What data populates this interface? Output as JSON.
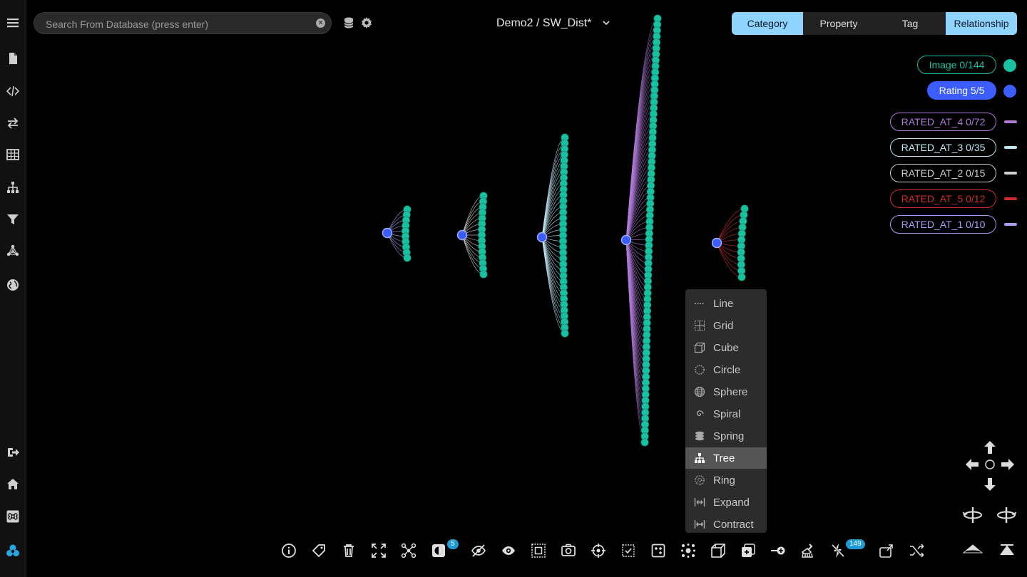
{
  "search": {
    "placeholder": "Search From Database (press enter)"
  },
  "title": "Demo2 / SW_Dist*",
  "tabs": [
    {
      "label": "Category",
      "active": true
    },
    {
      "label": "Property",
      "active": false
    },
    {
      "label": "Tag",
      "active": false
    },
    {
      "label": "Relationship",
      "active": true
    }
  ],
  "legend": {
    "nodes": [
      {
        "label": "Image 0/144",
        "color": "#18c1a0",
        "filled": false
      },
      {
        "label": "Rating 5/5",
        "color": "#3b5cff",
        "filled": true
      }
    ],
    "edges": [
      {
        "label": "RATED_AT_4 0/72",
        "color": "#b07ad9"
      },
      {
        "label": "RATED_AT_3 0/35",
        "color": "#bfe7f2"
      },
      {
        "label": "RATED_AT_2 0/15",
        "color": "#d0d0d0"
      },
      {
        "label": "RATED_AT_5 0/12",
        "color": "#d22b2b"
      },
      {
        "label": "RATED_AT_1 0/10",
        "color": "#a99cf5"
      }
    ]
  },
  "graph": {
    "image_color": "#18c1a0",
    "rating_color": "#3b5cff",
    "clusters": [
      {
        "edge": "RATED_AT_1",
        "count": 10,
        "color": "#a99cf5"
      },
      {
        "edge": "RATED_AT_2",
        "count": 15,
        "color": "#d0d0d0"
      },
      {
        "edge": "RATED_AT_3",
        "count": 35,
        "color": "#bfe7f2"
      },
      {
        "edge": "RATED_AT_4",
        "count": 72,
        "color": "#b07ad9"
      },
      {
        "edge": "RATED_AT_5",
        "count": 12,
        "color": "#d22b2b"
      }
    ]
  },
  "layout_menu": {
    "items": [
      {
        "label": "Line",
        "icon": "line-icon"
      },
      {
        "label": "Grid",
        "icon": "grid-icon"
      },
      {
        "label": "Cube",
        "icon": "cube-icon"
      },
      {
        "label": "Circle",
        "icon": "circle-icon"
      },
      {
        "label": "Sphere",
        "icon": "sphere-icon"
      },
      {
        "label": "Spiral",
        "icon": "spiral-icon"
      },
      {
        "label": "Spring",
        "icon": "spring-icon"
      },
      {
        "label": "Tree",
        "icon": "tree-icon",
        "highlighted": true
      },
      {
        "label": "Ring",
        "icon": "ring-icon"
      },
      {
        "label": "Expand",
        "icon": "expand-icon"
      },
      {
        "label": "Contract",
        "icon": "contract-icon"
      }
    ]
  },
  "toolbar": {
    "theme_badge": "5",
    "flash_badge": "149"
  }
}
